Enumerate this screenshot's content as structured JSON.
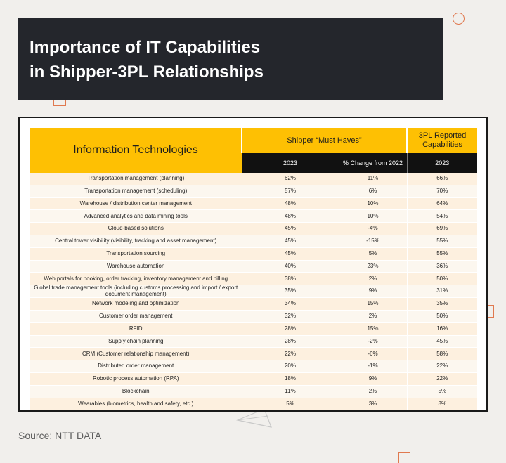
{
  "header": {
    "title_line1": "Importance of IT Capabilities",
    "title_line2": "in Shipper-3PL Relationships"
  },
  "source": "Source: NTT DATA",
  "colors": {
    "header_yellow": "#fec003",
    "subheader_black": "#111111",
    "title_bg": "#24262c",
    "accent_orange": "#e0794f",
    "row_odd": "#fdf0df",
    "row_even": "#fcf7ef"
  },
  "chart_data": {
    "type": "table",
    "title": "Importance of IT Capabilities in Shipper-3PL Relationships",
    "column_header": "Information Technologies",
    "group_headers": [
      "Shipper “Must Haves”",
      "3PL Reported Capabilities"
    ],
    "sub_headers": [
      "2023",
      "% Change from 2022",
      "2023"
    ],
    "rows": [
      {
        "tech": "Transportation management (planning)",
        "shipper_2023": "62%",
        "change_2022": "11%",
        "tpl_2023": "66%"
      },
      {
        "tech": "Transportation management (scheduling)",
        "shipper_2023": "57%",
        "change_2022": "6%",
        "tpl_2023": "70%"
      },
      {
        "tech": "Warehouse / distribution center management",
        "shipper_2023": "48%",
        "change_2022": "10%",
        "tpl_2023": "64%"
      },
      {
        "tech": "Advanced analytics and data mining tools",
        "shipper_2023": "48%",
        "change_2022": "10%",
        "tpl_2023": "54%"
      },
      {
        "tech": "Cloud-based solutions",
        "shipper_2023": "45%",
        "change_2022": "-4%",
        "tpl_2023": "69%"
      },
      {
        "tech": "Central tower visibility (visibility, tracking and asset management)",
        "shipper_2023": "45%",
        "change_2022": "-15%",
        "tpl_2023": "55%"
      },
      {
        "tech": "Transportation sourcing",
        "shipper_2023": "45%",
        "change_2022": "5%",
        "tpl_2023": "55%"
      },
      {
        "tech": "Warehouse automation",
        "shipper_2023": "40%",
        "change_2022": "23%",
        "tpl_2023": "36%"
      },
      {
        "tech": "Web portals for booking, order tracking, inventory management and billing",
        "shipper_2023": "38%",
        "change_2022": "2%",
        "tpl_2023": "50%"
      },
      {
        "tech": "Global trade management tools (including customs processing and import / export document management)",
        "shipper_2023": "35%",
        "change_2022": "9%",
        "tpl_2023": "31%"
      },
      {
        "tech": "Network modeling and optimization",
        "shipper_2023": "34%",
        "change_2022": "15%",
        "tpl_2023": "35%"
      },
      {
        "tech": "Customer order management",
        "shipper_2023": "32%",
        "change_2022": "2%",
        "tpl_2023": "50%"
      },
      {
        "tech": "RFID",
        "shipper_2023": "28%",
        "change_2022": "15%",
        "tpl_2023": "16%"
      },
      {
        "tech": "Supply chain planning",
        "shipper_2023": "28%",
        "change_2022": "-2%",
        "tpl_2023": "45%"
      },
      {
        "tech": "CRM (Customer relationship management)",
        "shipper_2023": "22%",
        "change_2022": "-6%",
        "tpl_2023": "58%"
      },
      {
        "tech": "Distributed order management",
        "shipper_2023": "20%",
        "change_2022": "-1%",
        "tpl_2023": "22%"
      },
      {
        "tech": "Robotic process automation (RPA)",
        "shipper_2023": "18%",
        "change_2022": "9%",
        "tpl_2023": "22%"
      },
      {
        "tech": "Blockchain",
        "shipper_2023": "11%",
        "change_2022": "2%",
        "tpl_2023": "5%"
      },
      {
        "tech": "Wearables (biometrics, health and safety, etc.)",
        "shipper_2023": "5%",
        "change_2022": "3%",
        "tpl_2023": "8%"
      }
    ]
  }
}
